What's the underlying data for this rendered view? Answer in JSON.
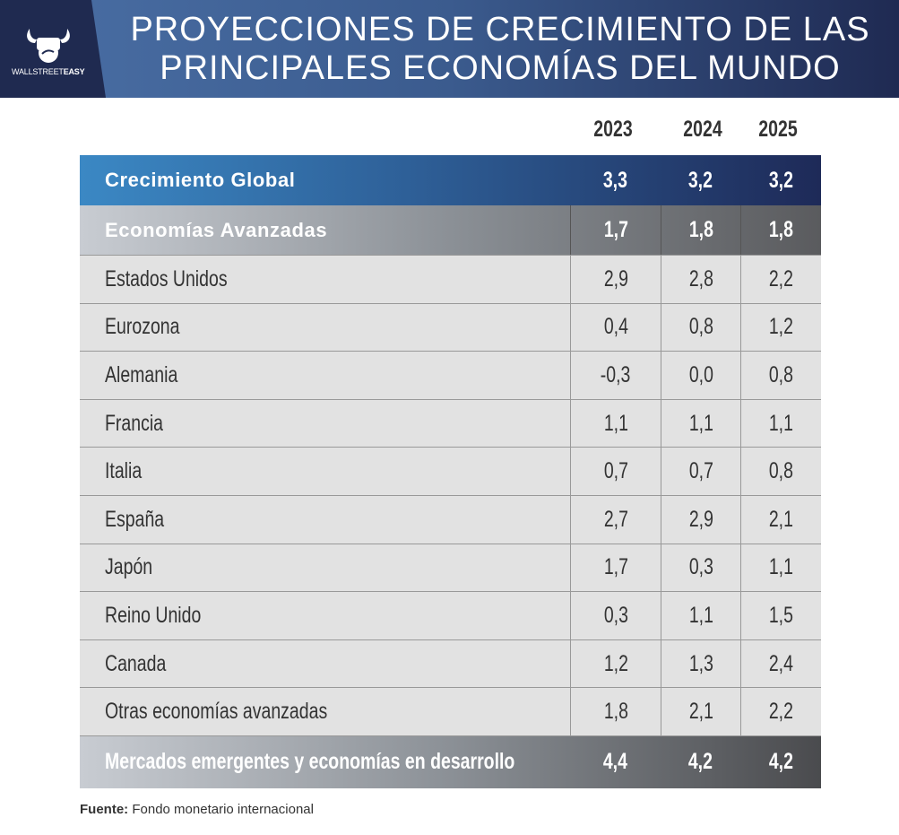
{
  "header": {
    "logo_text_regular": "WALLSTREET",
    "logo_text_bold": "EASY",
    "title_line1": "PROYECCIONES DE CRECIMIENTO DE LAS",
    "title_line2": "PRINCIPALES ECONOMÍAS DEL MUNDO"
  },
  "columns": [
    "2023",
    "2024",
    "2025"
  ],
  "global": {
    "label": "Crecimiento Global",
    "values": [
      "3,3",
      "3,2",
      "3,2"
    ]
  },
  "advanced": {
    "label": "Economías Avanzadas",
    "values": [
      "1,7",
      "1,8",
      "1,8"
    ]
  },
  "rows": [
    {
      "label": "Estados Unidos",
      "values": [
        "2,9",
        "2,8",
        "2,2"
      ]
    },
    {
      "label": "Eurozona",
      "values": [
        "0,4",
        "0,8",
        "1,2"
      ]
    },
    {
      "label": "Alemania",
      "values": [
        "-0,3",
        "0,0",
        "0,8"
      ]
    },
    {
      "label": "Francia",
      "values": [
        "1,1",
        "1,1",
        "1,1"
      ]
    },
    {
      "label": "Italia",
      "values": [
        "0,7",
        "0,7",
        "0,8"
      ]
    },
    {
      "label": "España",
      "values": [
        "2,7",
        "2,9",
        "2,1"
      ]
    },
    {
      "label": "Japón",
      "values": [
        "1,7",
        "0,3",
        "1,1"
      ]
    },
    {
      "label": "Reino Unido",
      "values": [
        "0,3",
        "1,1",
        "1,5"
      ]
    },
    {
      "label": "Canada",
      "values": [
        "1,2",
        "1,3",
        "2,4"
      ]
    },
    {
      "label": "Otras economías avanzadas",
      "values": [
        "1,8",
        "2,1",
        "2,2"
      ]
    }
  ],
  "emerging": {
    "label": "Mercados emergentes y economías en desarrollo",
    "values": [
      "4,4",
      "4,2",
      "4,2"
    ]
  },
  "source": {
    "label": "Fuente:",
    "text": "Fondo monetario internacional"
  },
  "colors": {
    "header_dark": "#1f2a50",
    "global_start": "#3b88c4",
    "global_end": "#1e2a58",
    "row_bg": "#e2e2e2"
  }
}
